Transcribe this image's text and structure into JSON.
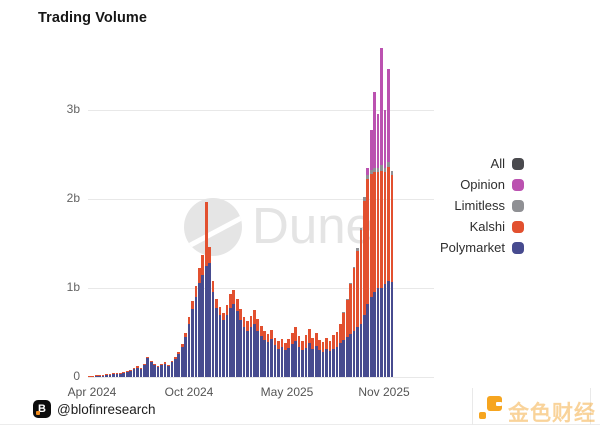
{
  "title": "Trading Volume",
  "watermark": {
    "text": "Dune"
  },
  "legend": [
    {
      "label": "All",
      "color": "#4a4a4e"
    },
    {
      "label": "Opinion",
      "color": "#bb52b0"
    },
    {
      "label": "Limitless",
      "color": "#8f9094"
    },
    {
      "label": "Kalshi",
      "color": "#e2502f"
    },
    {
      "label": "Polymarket",
      "color": "#474b8f"
    }
  ],
  "footer": {
    "icon_letter": "B",
    "handle": "@blofinresearch",
    "brand_text": "金色财经",
    "brand_color": "#f6a51f"
  },
  "chart_data": {
    "type": "bar",
    "stacked": true,
    "title": "Trading Volume",
    "unit": "billions USD (weekly)",
    "grid": true,
    "legend_position": "right",
    "x_axis": {
      "ticks": [
        "Apr 2024",
        "Oct 2024",
        "May 2025",
        "Nov 2025"
      ]
    },
    "y_axis": {
      "ticks": [
        "0",
        "1b",
        "2b",
        "3b"
      ],
      "tick_values": [
        0,
        1,
        2,
        3
      ],
      "ylim": [
        0,
        3.8
      ]
    },
    "series": [
      {
        "name": "Polymarket",
        "color": "#474b8f",
        "values": [
          0.01,
          0.012,
          0.015,
          0.018,
          0.02,
          0.025,
          0.028,
          0.032,
          0.036,
          0.04,
          0.045,
          0.055,
          0.065,
          0.085,
          0.105,
          0.09,
          0.13,
          0.21,
          0.165,
          0.135,
          0.115,
          0.13,
          0.15,
          0.125,
          0.165,
          0.2,
          0.26,
          0.34,
          0.45,
          0.6,
          0.76,
          0.9,
          1.06,
          1.15,
          1.25,
          1.28,
          0.95,
          0.78,
          0.7,
          0.64,
          0.7,
          0.78,
          0.82,
          0.74,
          0.64,
          0.56,
          0.52,
          0.56,
          0.6,
          0.52,
          0.46,
          0.42,
          0.39,
          0.43,
          0.36,
          0.32,
          0.34,
          0.3,
          0.33,
          0.37,
          0.41,
          0.34,
          0.3,
          0.33,
          0.38,
          0.31,
          0.35,
          0.3,
          0.28,
          0.31,
          0.29,
          0.32,
          0.34,
          0.38,
          0.42,
          0.45,
          0.48,
          0.52,
          0.56,
          0.6,
          0.7,
          0.82,
          0.9,
          0.95,
          1.0,
          1.0,
          1.05,
          1.08,
          1.07
        ]
      },
      {
        "name": "Kalshi",
        "color": "#e2502f",
        "values": [
          0.004,
          0.004,
          0.005,
          0.005,
          0.006,
          0.006,
          0.007,
          0.008,
          0.008,
          0.009,
          0.01,
          0.01,
          0.012,
          0.012,
          0.014,
          0.012,
          0.015,
          0.018,
          0.015,
          0.014,
          0.012,
          0.015,
          0.015,
          0.014,
          0.018,
          0.02,
          0.025,
          0.035,
          0.05,
          0.07,
          0.09,
          0.12,
          0.16,
          0.22,
          0.72,
          0.18,
          0.13,
          0.1,
          0.09,
          0.08,
          0.11,
          0.15,
          0.16,
          0.14,
          0.12,
          0.11,
          0.11,
          0.13,
          0.15,
          0.13,
          0.11,
          0.1,
          0.09,
          0.1,
          0.08,
          0.08,
          0.09,
          0.08,
          0.1,
          0.13,
          0.15,
          0.12,
          0.11,
          0.14,
          0.16,
          0.13,
          0.15,
          0.12,
          0.11,
          0.13,
          0.12,
          0.15,
          0.17,
          0.22,
          0.3,
          0.42,
          0.56,
          0.7,
          0.86,
          1.05,
          1.28,
          1.4,
          1.38,
          1.35,
          1.3,
          1.32,
          1.25,
          1.28,
          1.2
        ]
      },
      {
        "name": "Limitless",
        "color": "#8f9094",
        "values": [
          0,
          0,
          0,
          0,
          0,
          0,
          0,
          0,
          0,
          0,
          0,
          0,
          0,
          0,
          0,
          0,
          0,
          0,
          0,
          0,
          0,
          0,
          0,
          0,
          0,
          0,
          0,
          0,
          0,
          0,
          0,
          0,
          0,
          0,
          0,
          0,
          0,
          0,
          0,
          0,
          0,
          0,
          0,
          0,
          0,
          0,
          0,
          0,
          0,
          0,
          0,
          0,
          0,
          0,
          0,
          0,
          0,
          0,
          0,
          0,
          0,
          0,
          0,
          0,
          0,
          0,
          0,
          0,
          0,
          0,
          0,
          0,
          0,
          0,
          0.01,
          0.01,
          0.02,
          0.02,
          0.03,
          0.03,
          0.04,
          0.05,
          0.05,
          0.05,
          0.05,
          0.06,
          0.05,
          0.06,
          0.05
        ]
      },
      {
        "name": "Opinion",
        "color": "#bb52b0",
        "values": [
          0,
          0,
          0,
          0,
          0,
          0,
          0,
          0,
          0,
          0,
          0,
          0,
          0,
          0,
          0,
          0,
          0,
          0,
          0,
          0,
          0,
          0,
          0,
          0,
          0,
          0,
          0,
          0,
          0,
          0,
          0,
          0,
          0,
          0,
          0,
          0,
          0,
          0,
          0,
          0,
          0,
          0,
          0,
          0,
          0,
          0,
          0,
          0,
          0,
          0,
          0,
          0,
          0,
          0,
          0,
          0,
          0,
          0,
          0,
          0,
          0,
          0,
          0,
          0,
          0,
          0,
          0,
          0,
          0,
          0,
          0,
          0,
          0,
          0,
          0,
          0,
          0,
          0,
          0,
          0,
          0,
          0.08,
          0.45,
          0.85,
          0.6,
          1.32,
          0.65,
          1.04,
          0
        ]
      }
    ]
  }
}
